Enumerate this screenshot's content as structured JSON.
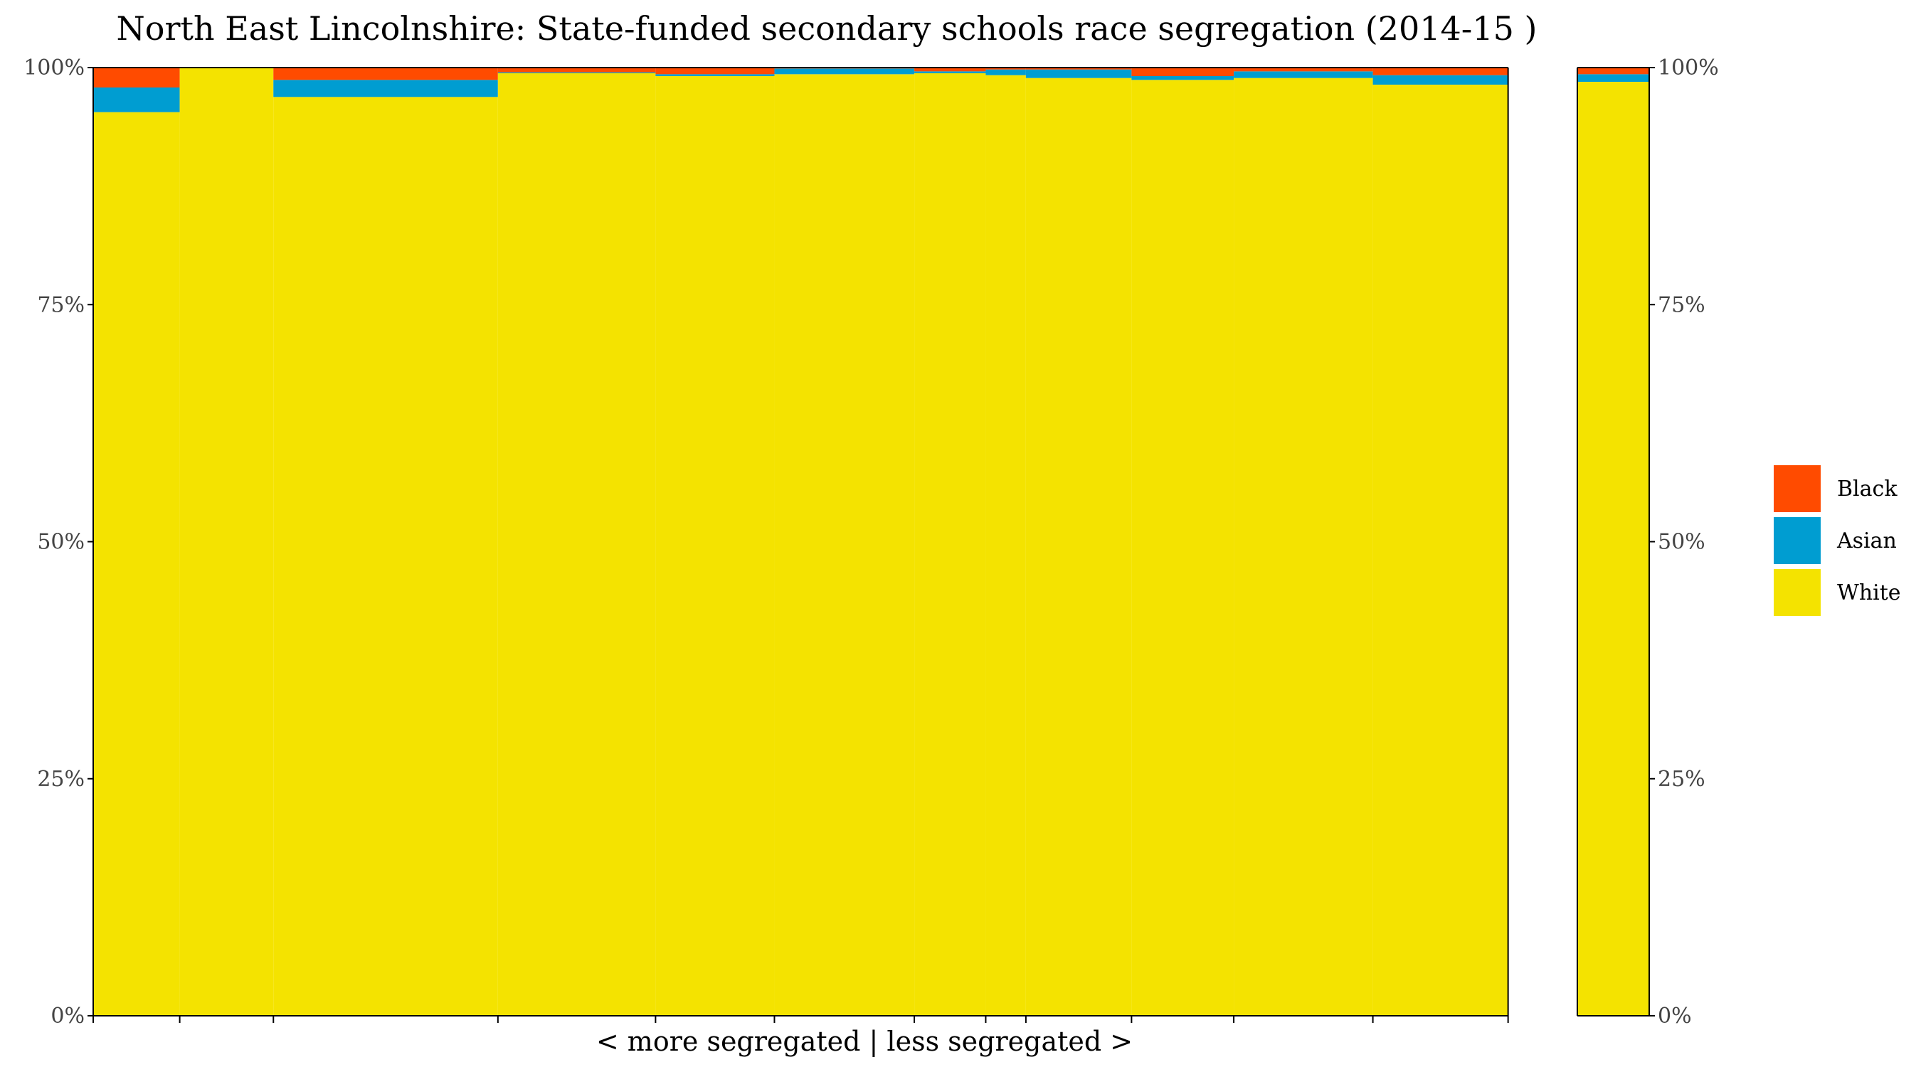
{
  "chart_data": {
    "type": "bar",
    "variant": "stacked-100-variable-width (marimekko)",
    "title": "North East Lincolnshire: State-funded secondary schools race segregation (2014-15 )",
    "xlabel": "< more segregated | less segregated >",
    "ylabel": "",
    "ylim": [
      0,
      100
    ],
    "y_ticks": [
      "0%",
      "25%",
      "50%",
      "75%",
      "100%"
    ],
    "grid": false,
    "legend": {
      "position": "right",
      "entries": [
        {
          "name": "Black",
          "color": "#FF4B00"
        },
        {
          "name": "Asian",
          "color": "#009DD1"
        },
        {
          "name": "White",
          "color": "#F4E300"
        }
      ]
    },
    "x_axis_domain": [
      0,
      100
    ],
    "schools_xrange": [
      0,
      90.93
    ],
    "total_xrange": [
      95.38,
      100
    ],
    "series_order": [
      "White",
      "Asian",
      "Black"
    ],
    "schools": [
      {
        "x_start": 0,
        "x_end": 5.56,
        "White": 95.3,
        "Asian": 2.6,
        "Black": 2.1
      },
      {
        "x_start": 5.56,
        "x_end": 11.58,
        "White": 100.0,
        "Asian": 0.0,
        "Black": 0.0
      },
      {
        "x_start": 11.58,
        "x_end": 26.01,
        "White": 96.9,
        "Asian": 1.8,
        "Black": 1.3
      },
      {
        "x_start": 26.01,
        "x_end": 36.14,
        "White": 99.4,
        "Asian": 0.1,
        "Black": 0.5
      },
      {
        "x_start": 36.14,
        "x_end": 43.78,
        "White": 99.1,
        "Asian": 0.2,
        "Black": 0.7
      },
      {
        "x_start": 43.78,
        "x_end": 52.77,
        "White": 99.3,
        "Asian": 0.6,
        "Black": 0.1
      },
      {
        "x_start": 52.77,
        "x_end": 57.36,
        "White": 99.4,
        "Asian": 0.2,
        "Black": 0.4
      },
      {
        "x_start": 57.36,
        "x_end": 59.94,
        "White": 99.2,
        "Asian": 0.6,
        "Black": 0.2
      },
      {
        "x_start": 59.94,
        "x_end": 66.73,
        "White": 98.9,
        "Asian": 0.9,
        "Black": 0.2
      },
      {
        "x_start": 66.73,
        "x_end": 73.3,
        "White": 98.7,
        "Asian": 0.4,
        "Black": 0.9
      },
      {
        "x_start": 73.3,
        "x_end": 82.24,
        "White": 98.9,
        "Asian": 0.7,
        "Black": 0.4
      },
      {
        "x_start": 82.24,
        "x_end": 90.93,
        "White": 98.2,
        "Asian": 1.0,
        "Black": 0.8
      }
    ],
    "total": {
      "x_start": 95.38,
      "x_end": 100,
      "White": 98.5,
      "Asian": 0.8,
      "Black": 0.7
    }
  }
}
